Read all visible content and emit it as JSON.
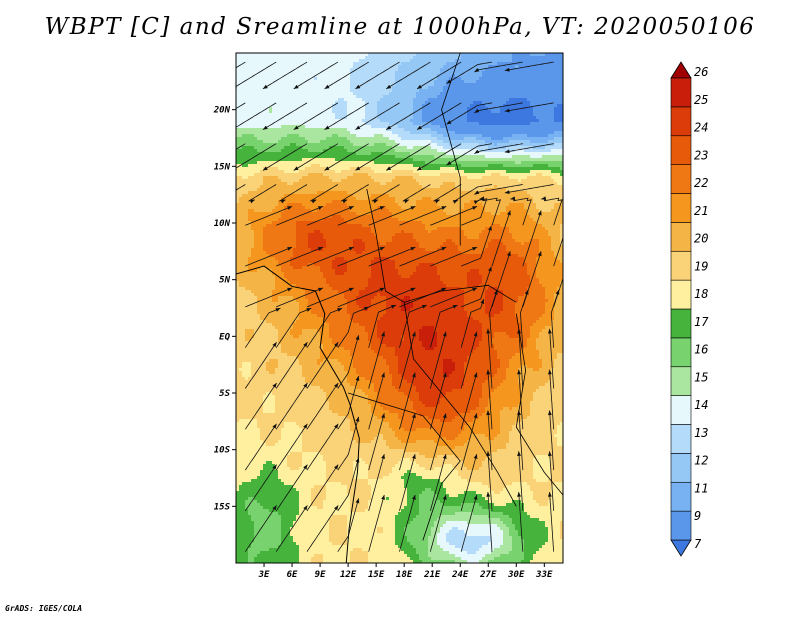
{
  "title": "WBPT [C] and Sreamline at 1000hPa, VT: 2020050106",
  "credit": "GrADS: IGES/COLA",
  "map": {
    "lat_range": [
      -20,
      25
    ],
    "lon_range": [
      0,
      35
    ],
    "lat_ticks": [
      {
        "value": 20,
        "label": "20N"
      },
      {
        "value": 15,
        "label": "15N"
      },
      {
        "value": 10,
        "label": "10N"
      },
      {
        "value": 5,
        "label": "5N"
      },
      {
        "value": 0,
        "label": "EQ"
      },
      {
        "value": -5,
        "label": "5S"
      },
      {
        "value": -10,
        "label": "10S"
      },
      {
        "value": -15,
        "label": "15S"
      }
    ],
    "lon_ticks": [
      {
        "value": 3,
        "label": "3E"
      },
      {
        "value": 6,
        "label": "6E"
      },
      {
        "value": 9,
        "label": "9E"
      },
      {
        "value": 12,
        "label": "12E"
      },
      {
        "value": 15,
        "label": "15E"
      },
      {
        "value": 18,
        "label": "18E"
      },
      {
        "value": 21,
        "label": "21E"
      },
      {
        "value": 24,
        "label": "24E"
      },
      {
        "value": 27,
        "label": "27E"
      },
      {
        "value": 30,
        "label": "30E"
      },
      {
        "value": 33,
        "label": "33E"
      }
    ]
  },
  "colorbar": {
    "levels": [
      "7",
      "9",
      "11",
      "12",
      "13",
      "14",
      "15",
      "16",
      "17",
      "18",
      "19",
      "20",
      "21",
      "22",
      "23",
      "24",
      "25",
      "26"
    ],
    "colors": [
      "#3c78e0",
      "#5a96ea",
      "#78b2f2",
      "#96c8f6",
      "#b4dcfa",
      "#e6f8fc",
      "#aae6a0",
      "#78d26e",
      "#46b43c",
      "#fff0a0",
      "#fad278",
      "#f5b446",
      "#f5961e",
      "#f07814",
      "#e65a0a",
      "#dc3c0a",
      "#c81e0a",
      "#a00000"
    ]
  }
}
